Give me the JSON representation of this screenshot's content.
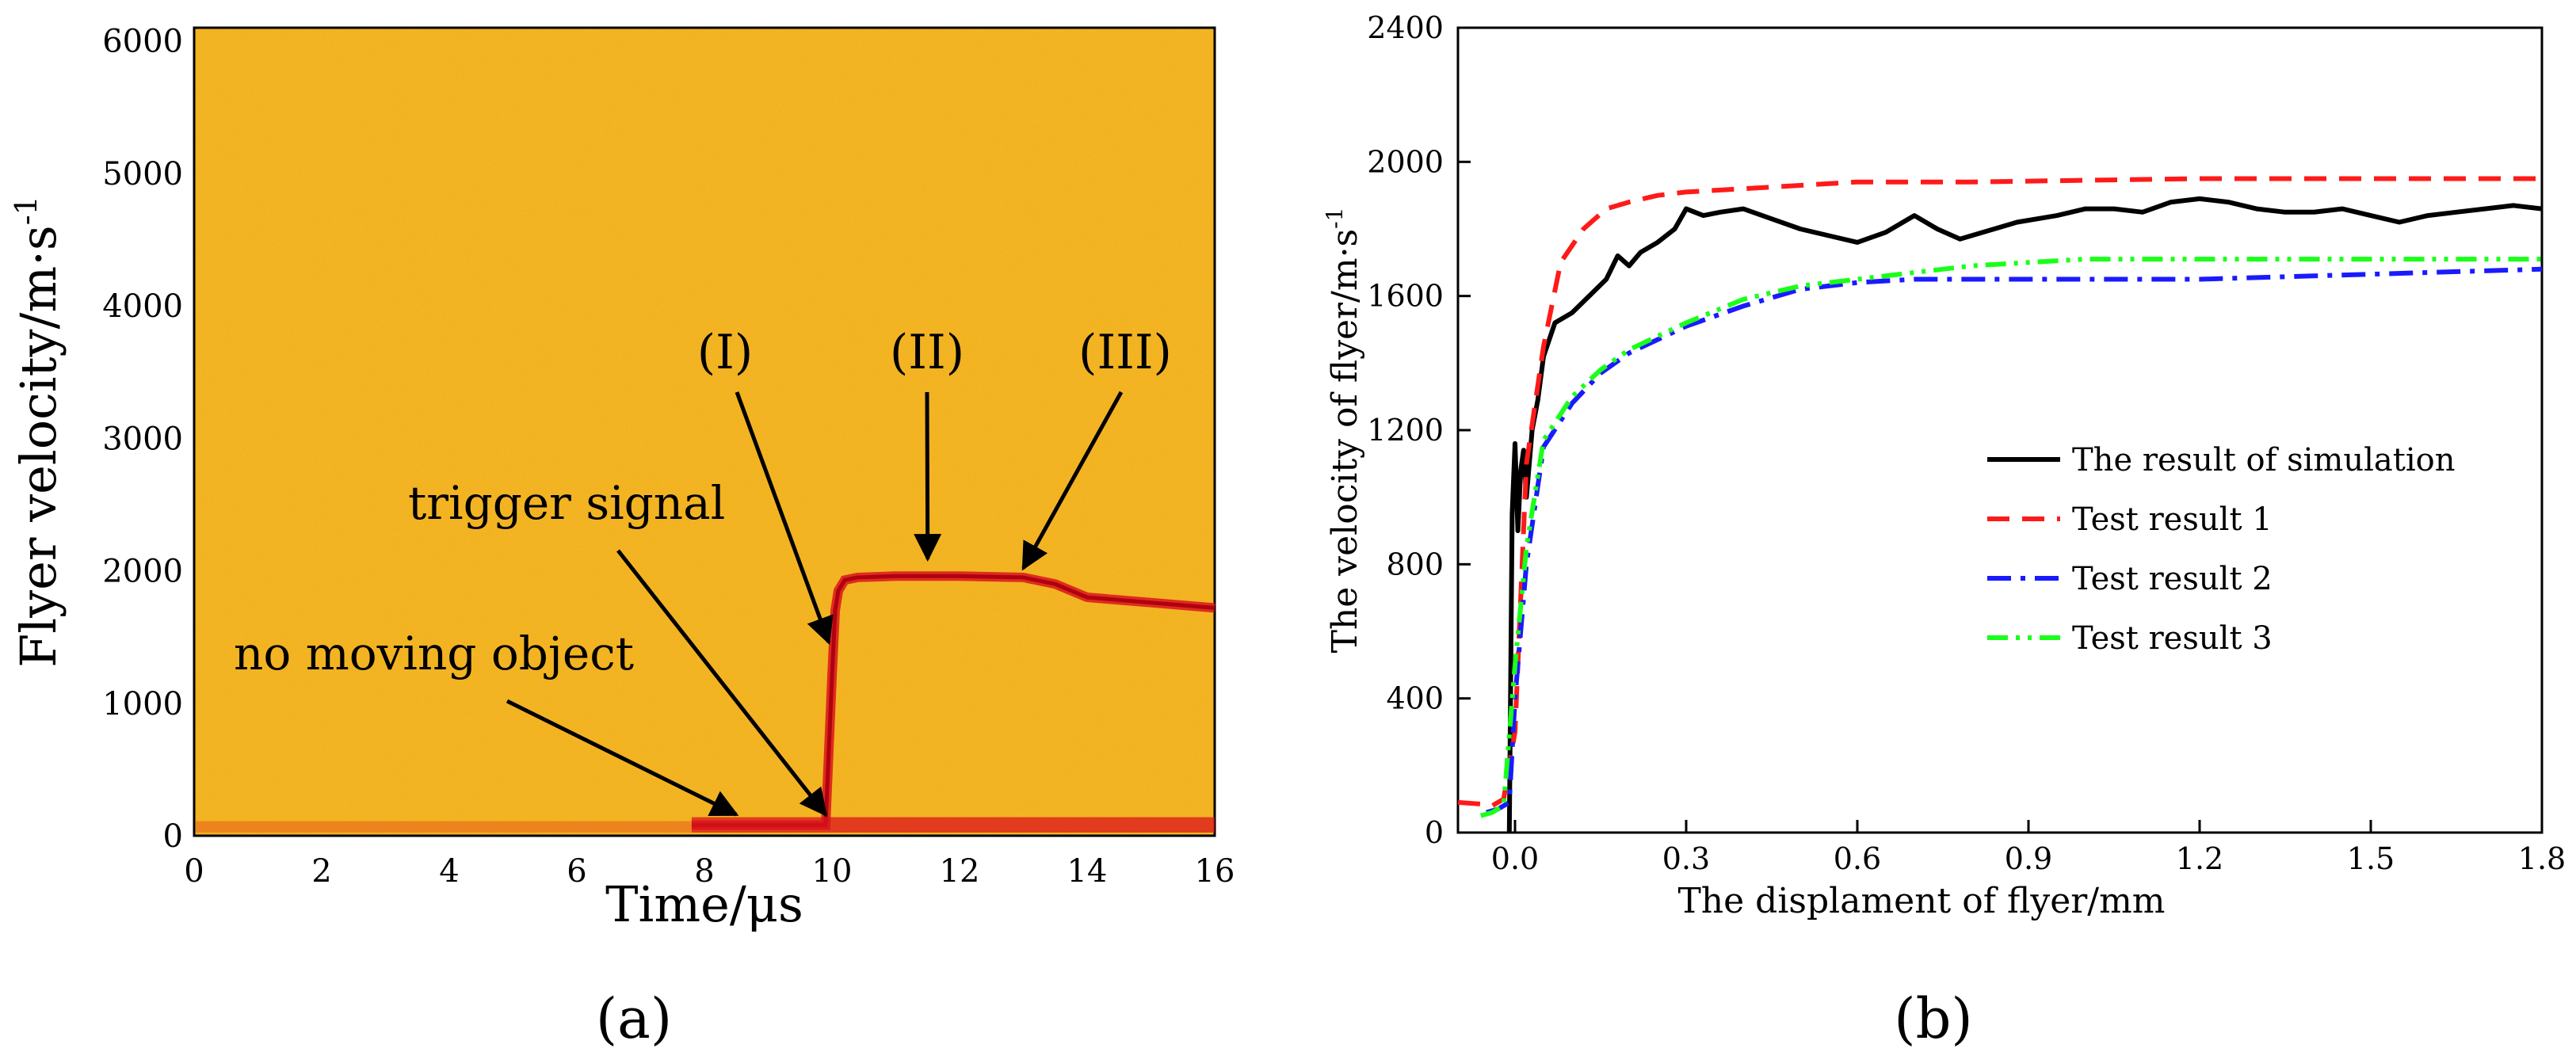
{
  "panel_labels": {
    "a": "(a)",
    "b": "(b)"
  },
  "colors": {
    "spectrogram_bg": "#f2b21e",
    "signal": "#d9141c",
    "simulation": "#000000",
    "test1": "#ff1a1a",
    "test2": "#1a1aff",
    "test3": "#1aff1a"
  },
  "chart_data": [
    {
      "type": "heatmap",
      "title": "",
      "xlabel": "Time/μs",
      "ylabel": "Flyer velocity/m·s-1",
      "ylabel_main": "Flyer velocity/m·s",
      "ylabel_sup": "-1",
      "xlim": [
        0,
        16
      ],
      "ylim": [
        0,
        6100
      ],
      "xticks": [
        0,
        2,
        4,
        6,
        8,
        10,
        12,
        14,
        16
      ],
      "yticks": [
        0,
        1000,
        2000,
        3000,
        4000,
        5000,
        6000
      ],
      "signal_trace": {
        "x": [
          7.8,
          9.9,
          10.0,
          10.05,
          10.1,
          10.2,
          10.4,
          11.0,
          12.0,
          13.0,
          13.5,
          14.0,
          15.0,
          16.0
        ],
        "y": [
          80,
          80,
          1200,
          1700,
          1850,
          1930,
          1950,
          1960,
          1960,
          1950,
          1900,
          1800,
          1760,
          1720
        ]
      },
      "annotations": [
        {
          "text": "(I)",
          "target": [
            9.95,
            1400
          ]
        },
        {
          "text": "(II)",
          "target": [
            11.5,
            2030
          ]
        },
        {
          "text": "(III)",
          "target": [
            13.0,
            1960
          ]
        },
        {
          "text": "trigger signal",
          "target": [
            9.9,
            100
          ]
        },
        {
          "text": "no moving object",
          "target": [
            8.5,
            100
          ]
        }
      ]
    },
    {
      "type": "line",
      "title": "",
      "xlabel": "The displament of flyer/mm",
      "ylabel": "The velocity of flyer/m·s-1",
      "ylabel_main": "The velocity of flyer/m·s",
      "ylabel_sup": "-1",
      "xlim": [
        -0.1,
        1.8
      ],
      "ylim": [
        0,
        2400
      ],
      "xticks": [
        "0.0",
        "0.3",
        "0.6",
        "0.9",
        "1.2",
        "1.5",
        "1.8"
      ],
      "yticks": [
        0,
        400,
        800,
        1200,
        1600,
        2000,
        2400
      ],
      "legend_position": "center-right",
      "series": [
        {
          "name": "The result of simulation",
          "style": "solid",
          "x": [
            -0.01,
            -0.005,
            0.0,
            0.005,
            0.01,
            0.015,
            0.02,
            0.03,
            0.04,
            0.05,
            0.07,
            0.1,
            0.13,
            0.16,
            0.18,
            0.2,
            0.22,
            0.25,
            0.28,
            0.3,
            0.33,
            0.36,
            0.4,
            0.45,
            0.5,
            0.55,
            0.6,
            0.65,
            0.7,
            0.74,
            0.78,
            0.82,
            0.88,
            0.95,
            1.0,
            1.05,
            1.1,
            1.15,
            1.2,
            1.25,
            1.3,
            1.35,
            1.4,
            1.45,
            1.5,
            1.55,
            1.6,
            1.65,
            1.7,
            1.75,
            1.8
          ],
          "y": [
            0,
            950,
            1160,
            900,
            1080,
            1140,
            1000,
            1200,
            1290,
            1420,
            1520,
            1550,
            1600,
            1650,
            1720,
            1690,
            1730,
            1760,
            1800,
            1860,
            1840,
            1850,
            1860,
            1830,
            1800,
            1780,
            1760,
            1790,
            1840,
            1800,
            1770,
            1790,
            1820,
            1840,
            1860,
            1860,
            1850,
            1880,
            1890,
            1880,
            1860,
            1850,
            1850,
            1860,
            1840,
            1820,
            1840,
            1850,
            1860,
            1870,
            1860
          ]
        },
        {
          "name": "Test result 1",
          "style": "dashed",
          "x": [
            -0.1,
            -0.06,
            -0.04,
            -0.02,
            0.0,
            0.02,
            0.05,
            0.08,
            0.12,
            0.16,
            0.2,
            0.25,
            0.3,
            0.4,
            0.5,
            0.6,
            0.8,
            1.0,
            1.2,
            1.4,
            1.6,
            1.8
          ],
          "y": [
            90,
            85,
            80,
            100,
            300,
            1100,
            1450,
            1700,
            1800,
            1860,
            1880,
            1900,
            1910,
            1920,
            1930,
            1940,
            1940,
            1945,
            1950,
            1950,
            1950,
            1950
          ]
        },
        {
          "name": "Test result 2",
          "style": "dashdot",
          "x": [
            -0.05,
            -0.03,
            -0.01,
            0.0,
            0.02,
            0.05,
            0.1,
            0.15,
            0.2,
            0.3,
            0.4,
            0.5,
            0.6,
            0.7,
            0.8,
            0.9,
            1.0,
            1.2,
            1.4,
            1.6,
            1.8
          ],
          "y": [
            60,
            70,
            90,
            400,
            800,
            1150,
            1280,
            1370,
            1430,
            1510,
            1570,
            1620,
            1640,
            1650,
            1650,
            1650,
            1650,
            1650,
            1660,
            1670,
            1680
          ]
        },
        {
          "name": "Test result 3",
          "style": "dashdotdot",
          "x": [
            -0.06,
            -0.04,
            -0.02,
            0.0,
            0.02,
            0.05,
            0.1,
            0.15,
            0.2,
            0.3,
            0.4,
            0.5,
            0.6,
            0.7,
            0.8,
            0.9,
            1.0,
            1.2,
            1.4,
            1.6,
            1.8
          ],
          "y": [
            50,
            60,
            80,
            500,
            850,
            1170,
            1300,
            1380,
            1440,
            1520,
            1590,
            1630,
            1650,
            1670,
            1690,
            1700,
            1710,
            1710,
            1710,
            1710,
            1710
          ]
        }
      ]
    }
  ]
}
